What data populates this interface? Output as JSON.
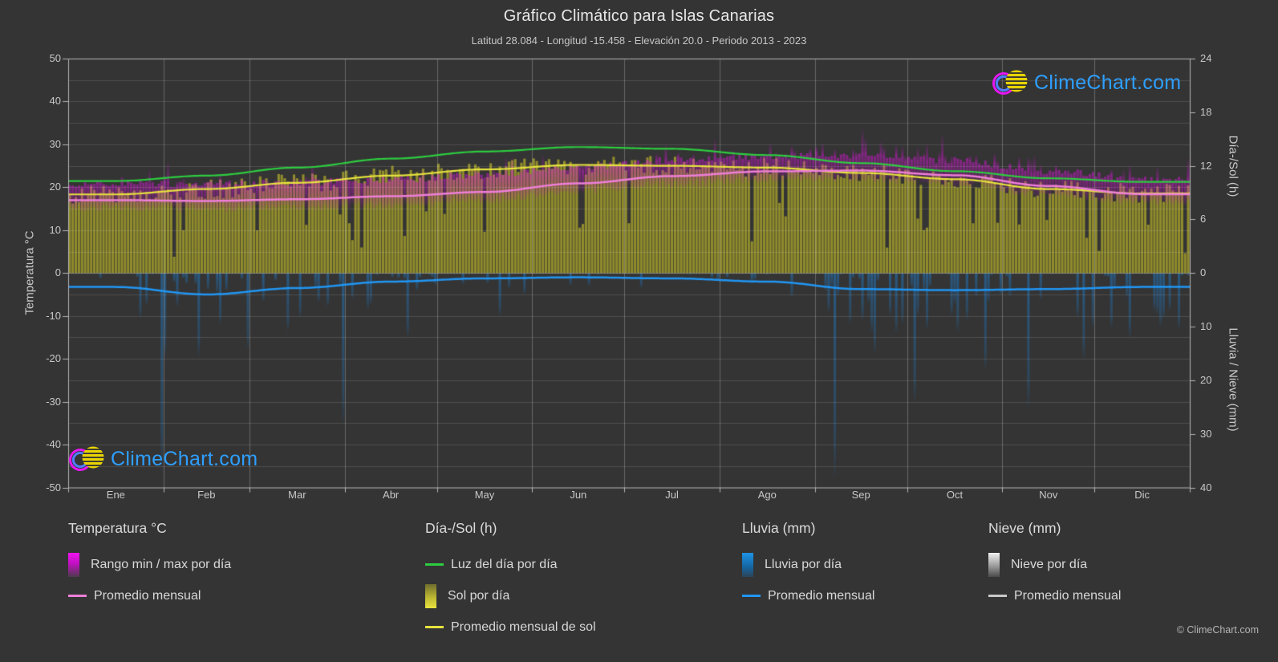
{
  "title": "Gráfico Climático para Islas Canarias",
  "subtitle": "Latitud 28.084 - Longitud -15.458 - Elevación 20.0 - Periodo 2013 - 2023",
  "watermark": "ClimeChart.com",
  "copyright": "© ClimeChart.com",
  "colors": {
    "background": "#343434",
    "grid": "rgba(255,255,255,0.13)",
    "month_grid": "rgba(255,255,255,0.25)",
    "border": "#b5b5b5",
    "temp_range_fill": "#d816d8",
    "temp_avg_line": "#ee7fd8",
    "daylight_line": "#2ecc40",
    "sun_fill": "#cec82a",
    "sun_avg_line": "#e6e23e",
    "rain_fill": "#1e78c4",
    "rain_avg_line": "#2196f3",
    "snow_fill": "#e0e0e0",
    "snow_avg_line": "#c9c9c9",
    "watermark_blue": "#2e9fff"
  },
  "axes": {
    "temp": {
      "label": "Temperatura °C",
      "min": -50,
      "max": 50,
      "ticks": [
        50,
        40,
        30,
        20,
        10,
        0,
        -10,
        -20,
        -30,
        -40,
        -50
      ]
    },
    "daysun": {
      "label": "Día-/Sol (h)",
      "min": 0,
      "max": 24,
      "ticks": [
        24,
        18,
        12,
        6,
        0
      ]
    },
    "rainsnow": {
      "label": "Lluvia / Nieve (mm)",
      "min": 0,
      "max": 40,
      "ticks": [
        10,
        20,
        30,
        40
      ]
    },
    "months": [
      "Ene",
      "Feb",
      "Mar",
      "Abr",
      "May",
      "Jun",
      "Jul",
      "Ago",
      "Sep",
      "Oct",
      "Nov",
      "Dic"
    ]
  },
  "chart_data": {
    "type": "climate-composite",
    "categories": [
      "Ene",
      "Feb",
      "Mar",
      "Abr",
      "May",
      "Jun",
      "Jul",
      "Ago",
      "Sep",
      "Oct",
      "Nov",
      "Dic"
    ],
    "series": [
      {
        "name": "Promedio mensual temperatura",
        "units": "°C",
        "values": [
          17.0,
          16.8,
          17.2,
          17.9,
          18.9,
          20.9,
          22.6,
          23.7,
          23.9,
          22.8,
          20.3,
          18.4
        ]
      },
      {
        "name": "Mínima diaria típica",
        "units": "°C",
        "values": [
          15.1,
          14.9,
          15.2,
          15.8,
          17.0,
          19.0,
          20.7,
          21.8,
          21.9,
          20.8,
          18.3,
          16.4
        ]
      },
      {
        "name": "Máxima diaria típica",
        "units": "°C",
        "values": [
          20.9,
          20.7,
          21.2,
          21.8,
          22.9,
          24.7,
          26.3,
          27.3,
          27.5,
          26.2,
          23.8,
          21.8
        ]
      },
      {
        "name": "Luz del día por día",
        "units": "h",
        "values": [
          10.3,
          10.9,
          11.8,
          12.8,
          13.6,
          14.1,
          13.9,
          13.2,
          12.3,
          11.4,
          10.6,
          10.2
        ]
      },
      {
        "name": "Promedio mensual de sol",
        "units": "h",
        "values": [
          8.8,
          9.4,
          10.1,
          10.9,
          11.6,
          12.1,
          12.0,
          11.8,
          11.2,
          10.5,
          9.4,
          8.9
        ]
      },
      {
        "name": "Promedio mensual lluvia",
        "units": "mm/día",
        "values": [
          2.6,
          4.0,
          2.8,
          1.6,
          1.0,
          0.8,
          1.0,
          1.6,
          3.0,
          3.2,
          3.0,
          2.6
        ]
      },
      {
        "name": "Promedio mensual nieve",
        "units": "mm/día",
        "values": [
          0,
          0,
          0,
          0,
          0,
          0,
          0,
          0,
          0,
          0,
          0,
          0
        ]
      }
    ],
    "rain_spike_events": [
      {
        "day": 30,
        "mm": 37
      },
      {
        "day": 58,
        "mm": 14
      },
      {
        "day": 89,
        "mm": 28
      },
      {
        "day": 110,
        "mm": 12
      },
      {
        "day": 140,
        "mm": 8
      },
      {
        "day": 249,
        "mm": 38
      },
      {
        "day": 262,
        "mm": 15
      },
      {
        "day": 275,
        "mm": 24
      },
      {
        "day": 298,
        "mm": 18
      },
      {
        "day": 312,
        "mm": 25
      },
      {
        "day": 330,
        "mm": 16
      },
      {
        "day": 345,
        "mm": 12
      },
      {
        "day": 355,
        "mm": 10
      }
    ],
    "ylim_temp": [
      -50,
      50
    ],
    "ylim_daysun_h": [
      0,
      24
    ],
    "ylim_rain_mm": [
      0,
      40
    ],
    "grid": true,
    "legend_position": "bottom"
  },
  "legend": {
    "groups": [
      {
        "title": "Temperatura °C",
        "items": [
          {
            "swatch": "gradient-magenta",
            "label": "Rango min / max por día"
          },
          {
            "swatch": "line-pink",
            "label": "Promedio mensual"
          }
        ]
      },
      {
        "title": "Día-/Sol (h)",
        "items": [
          {
            "swatch": "line-green",
            "label": "Luz del día por día"
          },
          {
            "swatch": "gradient-yellow",
            "label": "Sol por día"
          },
          {
            "swatch": "line-yellow",
            "label": "Promedio mensual de sol"
          }
        ]
      },
      {
        "title": "Lluvia (mm)",
        "items": [
          {
            "swatch": "gradient-blue",
            "label": "Lluvia por día"
          },
          {
            "swatch": "line-blue",
            "label": "Promedio mensual"
          }
        ]
      },
      {
        "title": "Nieve (mm)",
        "items": [
          {
            "swatch": "gradient-snow",
            "label": "Nieve por día"
          },
          {
            "swatch": "line-snow",
            "label": "Promedio mensual"
          }
        ]
      }
    ]
  }
}
